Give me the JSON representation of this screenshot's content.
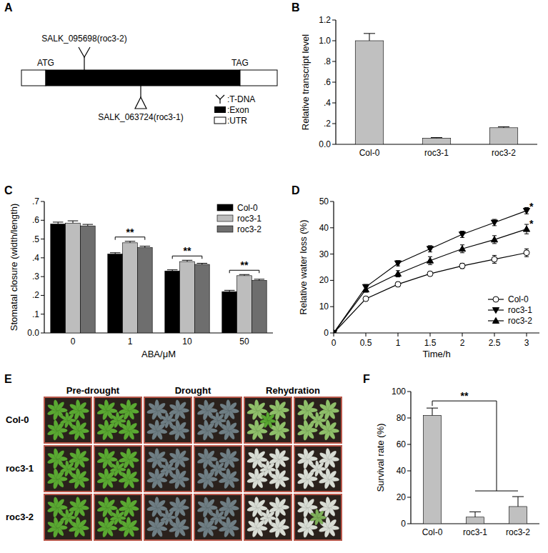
{
  "chart_data": [
    {
      "type": "bar",
      "y_label": "Relative transcript level",
      "categories": [
        "Col-0",
        "roc3-1",
        "roc3-2"
      ],
      "values": [
        1.0,
        0.06,
        0.16
      ],
      "errors": [
        0.07,
        0.005,
        0.01
      ],
      "color": "#c0c0c0",
      "ylim": [
        0,
        1.2
      ],
      "yticks": [
        {
          "value": 0,
          "label": "0.0"
        },
        {
          "value": 0.2,
          "label": ".2"
        },
        {
          "value": 0.4,
          "label": ".4"
        },
        {
          "value": 0.6,
          "label": ".6"
        },
        {
          "value": 0.8,
          "label": ".8"
        },
        {
          "value": 1,
          "label": "1.0"
        },
        1.2
      ]
    },
    {
      "type": "bar",
      "x_label": "ABA/μM",
      "y_label": "Stomatal closure (width/length)",
      "categories": [
        "0",
        "1",
        "10",
        "50"
      ],
      "series": [
        {
          "name": "Col-0",
          "color": "#000000",
          "values": [
            0.58,
            0.42,
            0.33,
            0.22
          ],
          "errors": [
            0.01,
            0.007,
            0.006,
            0.007
          ]
        },
        {
          "name": "roc3-1",
          "color": "#bdbdbd",
          "values": [
            0.585,
            0.48,
            0.38,
            0.305
          ],
          "errors": [
            0.012,
            0.008,
            0.007,
            0.006
          ]
        },
        {
          "name": "roc3-2",
          "color": "#6e6e6e",
          "values": [
            0.57,
            0.455,
            0.365,
            0.28
          ],
          "errors": [
            0.008,
            0.007,
            0.006,
            0.006
          ]
        }
      ],
      "ylim": [
        0,
        0.7
      ],
      "yticks": [
        {
          "value": 0,
          "label": "0.0"
        },
        {
          "value": 0.1,
          "label": ".1"
        },
        {
          "value": 0.2,
          "label": ".2"
        },
        {
          "value": 0.3,
          "label": ".3"
        },
        {
          "value": 0.4,
          "label": ".4"
        },
        {
          "value": 0.5,
          "label": ".5"
        },
        {
          "value": 0.6,
          "label": ".6"
        },
        {
          "value": 0.7,
          "label": ".7"
        }
      ],
      "legend": "upper right",
      "annotations": [
        {
          "category": "1",
          "text": "**"
        },
        {
          "category": "10",
          "text": "**"
        },
        {
          "category": "50",
          "text": "**"
        }
      ]
    },
    {
      "type": "line",
      "x_label": "Time/h",
      "y_label": "Relative water loss (%)",
      "x": [
        0,
        0.5,
        1,
        1.5,
        2,
        2.5,
        3
      ],
      "series": [
        {
          "name": "Col-0",
          "color": "#000000",
          "marker": "open-circle",
          "values": [
            0,
            13,
            18.5,
            22.5,
            25.5,
            28,
            30.5
          ],
          "errors": [
            0,
            0.8,
            0.9,
            0.8,
            1.0,
            1.5,
            1.5
          ]
        },
        {
          "name": "roc3-1",
          "color": "#000000",
          "marker": "triangle-down",
          "values": [
            0,
            17.5,
            26.5,
            32,
            37.5,
            42,
            46.5
          ],
          "errors": [
            0,
            0.9,
            1.0,
            1.2,
            1.2,
            1.2,
            1.2
          ]
        },
        {
          "name": "roc3-2",
          "color": "#000000",
          "marker": "triangle-up",
          "values": [
            0,
            16.5,
            22.5,
            27.5,
            32,
            35.5,
            39.5
          ],
          "errors": [
            0,
            1.0,
            1.2,
            1.5,
            1.5,
            1.5,
            1.8
          ]
        }
      ],
      "xlim": [
        0,
        3.2
      ],
      "ylim": [
        0,
        50
      ],
      "xticks": [
        0,
        0.5,
        1,
        1.5,
        2,
        2.5,
        3
      ],
      "yticks": [
        0,
        10,
        20,
        30,
        40,
        50
      ],
      "legend": "lower right",
      "annotations": [
        {
          "series": "roc3-1",
          "x": 3,
          "text": "*"
        },
        {
          "series": "roc3-2",
          "x": 3,
          "text": "*"
        }
      ]
    },
    {
      "type": "bar",
      "y_label": "Survival rate (%)",
      "categories": [
        "Col-0",
        "roc3-1",
        "roc3-2"
      ],
      "values": [
        82,
        5,
        13
      ],
      "errors": [
        5.5,
        4,
        7.5
      ],
      "color": "#c0c0c0",
      "ylim": [
        0,
        100
      ],
      "yticks": [
        0,
        20,
        40,
        60,
        80,
        100
      ],
      "annotations": [
        {
          "categories": [
            "Col-0",
            "roc3-1",
            "roc3-2"
          ],
          "text": "**"
        }
      ]
    }
  ],
  "figure": {
    "panel_labels": [
      "A",
      "B",
      "C",
      "D",
      "E",
      "F"
    ],
    "gene_diagram": {
      "start_codon": "ATG",
      "stop_codon": "TAG",
      "insertions": [
        {
          "label": "SALK_095698(roc3-2)",
          "side": "top"
        },
        {
          "label": "SALK_063724(roc3-1)",
          "side": "bottom"
        }
      ],
      "legend": [
        {
          "symbol": "t-dna",
          "label": ":T-DNA"
        },
        {
          "symbol": "exon",
          "label": ":Exon"
        },
        {
          "symbol": "utr",
          "label": ":UTR"
        }
      ]
    },
    "photo_grid": {
      "columns": [
        "Pre-drought",
        "Drought",
        "Rehydration"
      ],
      "rows": [
        "Col-0",
        "roc3-1",
        "roc3-2"
      ]
    }
  }
}
